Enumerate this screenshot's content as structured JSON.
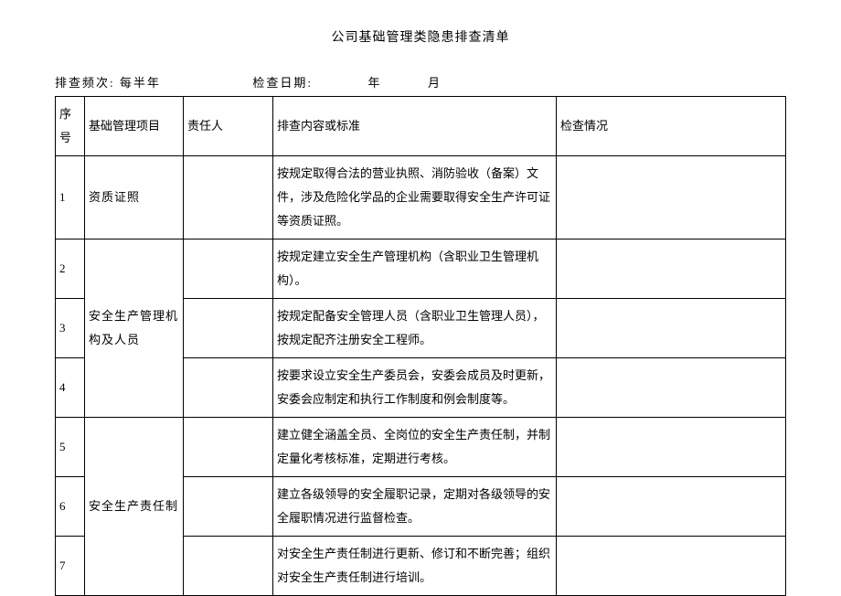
{
  "title": "公司基础管理类隐患排查清单",
  "meta": {
    "freq_label": "排查频次:",
    "freq_value": "每半年",
    "date_label": "检查日期:",
    "year": "年",
    "month": "月"
  },
  "headers": {
    "seq": "序号",
    "project": "基础管理项目",
    "responsible": "责任人",
    "content": "排查内容或标准",
    "check": "检查情况"
  },
  "rows": [
    {
      "seq": "1",
      "project": "资质证照",
      "project_rowspan": 1,
      "content": "按规定取得合法的营业执照、消防验收（备案）文件，涉及危险化学品的企业需要取得安全生产许可证等资质证照。"
    },
    {
      "seq": "2",
      "project": "安全生产管理机构及人员",
      "project_rowspan": 3,
      "content": "按规定建立安全生产管理机构（含职业卫生管理机构）。"
    },
    {
      "seq": "3",
      "content": "按规定配备安全管理人员（含职业卫生管理人员），按规定配齐注册安全工程师。"
    },
    {
      "seq": "4",
      "content": "按要求设立安全生产委员会，安委会成员及时更新，安委会应制定和执行工作制度和例会制度等。"
    },
    {
      "seq": "5",
      "project": "安全生产责任制",
      "project_rowspan": 3,
      "content": "建立健全涵盖全员、全岗位的安全生产责任制，并制定量化考核标准，定期进行考核。"
    },
    {
      "seq": "6",
      "content": "建立各级领导的安全履职记录，定期对各级领导的安全履职情况进行监督检查。"
    },
    {
      "seq": "7",
      "content": "对安全生产责任制进行更新、修订和不断完善；组织对安全生产责任制进行培训。"
    }
  ]
}
